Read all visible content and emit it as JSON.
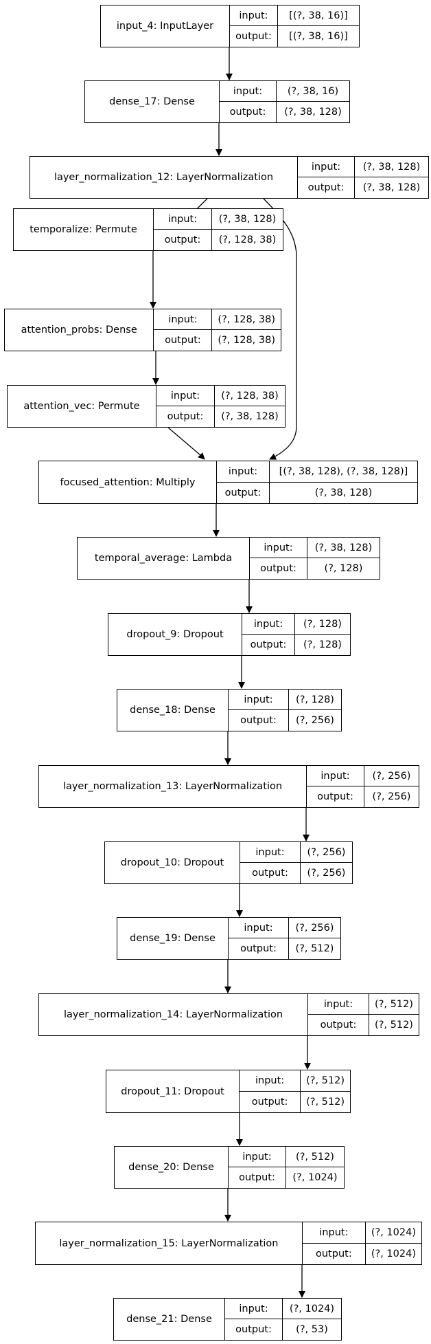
{
  "layers": [
    {
      "id": "input_4",
      "name": "input_4: InputLayer",
      "input_label": "input:",
      "output_label": "output:",
      "input": "[(?, 38, 16)]",
      "output": "[(?, 38, 16)]"
    },
    {
      "id": "dense_17",
      "name": "dense_17: Dense",
      "input_label": "input:",
      "output_label": "output:",
      "input": "(?, 38, 16)",
      "output": "(?, 38, 128)"
    },
    {
      "id": "layer_normalization_12",
      "name": "layer_normalization_12: LayerNormalization",
      "input_label": "input:",
      "output_label": "output:",
      "input": "(?, 38, 128)",
      "output": "(?, 38, 128)"
    },
    {
      "id": "temporalize",
      "name": "temporalize: Permute",
      "input_label": "input:",
      "output_label": "output:",
      "input": "(?, 38, 128)",
      "output": "(?, 128, 38)"
    },
    {
      "id": "attention_probs",
      "name": "attention_probs: Dense",
      "input_label": "input:",
      "output_label": "output:",
      "input": "(?, 128, 38)",
      "output": "(?, 128, 38)"
    },
    {
      "id": "attention_vec",
      "name": "attention_vec: Permute",
      "input_label": "input:",
      "output_label": "output:",
      "input": "(?, 128, 38)",
      "output": "(?, 38, 128)"
    },
    {
      "id": "focused_attention",
      "name": "focused_attention: Multiply",
      "input_label": "input:",
      "output_label": "output:",
      "input": "[(?, 38, 128), (?, 38, 128)]",
      "output": "(?, 38, 128)"
    },
    {
      "id": "temporal_average",
      "name": "temporal_average: Lambda",
      "input_label": "input:",
      "output_label": "output:",
      "input": "(?, 38, 128)",
      "output": "(?, 128)"
    },
    {
      "id": "dropout_9",
      "name": "dropout_9: Dropout",
      "input_label": "input:",
      "output_label": "output:",
      "input": "(?, 128)",
      "output": "(?, 128)"
    },
    {
      "id": "dense_18",
      "name": "dense_18: Dense",
      "input_label": "input:",
      "output_label": "output:",
      "input": "(?, 128)",
      "output": "(?, 256)"
    },
    {
      "id": "layer_normalization_13",
      "name": "layer_normalization_13: LayerNormalization",
      "input_label": "input:",
      "output_label": "output:",
      "input": "(?, 256)",
      "output": "(?, 256)"
    },
    {
      "id": "dropout_10",
      "name": "dropout_10: Dropout",
      "input_label": "input:",
      "output_label": "output:",
      "input": "(?, 256)",
      "output": "(?, 256)"
    },
    {
      "id": "dense_19",
      "name": "dense_19: Dense",
      "input_label": "input:",
      "output_label": "output:",
      "input": "(?, 256)",
      "output": "(?, 512)"
    },
    {
      "id": "layer_normalization_14",
      "name": "layer_normalization_14: LayerNormalization",
      "input_label": "input:",
      "output_label": "output:",
      "input": "(?, 512)",
      "output": "(?, 512)"
    },
    {
      "id": "dropout_11",
      "name": "dropout_11: Dropout",
      "input_label": "input:",
      "output_label": "output:",
      "input": "(?, 512)",
      "output": "(?, 512)"
    },
    {
      "id": "dense_20",
      "name": "dense_20: Dense",
      "input_label": "input:",
      "output_label": "output:",
      "input": "(?, 512)",
      "output": "(?, 1024)"
    },
    {
      "id": "layer_normalization_15",
      "name": "layer_normalization_15: LayerNormalization",
      "input_label": "input:",
      "output_label": "output:",
      "input": "(?, 1024)",
      "output": "(?, 1024)"
    },
    {
      "id": "dense_21",
      "name": "dense_21: Dense",
      "input_label": "input:",
      "output_label": "output:",
      "input": "(?, 1024)",
      "output": "(?, 53)"
    }
  ],
  "edges": [
    [
      "input_4",
      "dense_17"
    ],
    [
      "dense_17",
      "layer_normalization_12"
    ],
    [
      "layer_normalization_12",
      "temporalize"
    ],
    [
      "layer_normalization_12",
      "focused_attention"
    ],
    [
      "temporalize",
      "attention_probs"
    ],
    [
      "attention_probs",
      "attention_vec"
    ],
    [
      "attention_vec",
      "focused_attention"
    ],
    [
      "focused_attention",
      "temporal_average"
    ],
    [
      "temporal_average",
      "dropout_9"
    ],
    [
      "dropout_9",
      "dense_18"
    ],
    [
      "dense_18",
      "layer_normalization_13"
    ],
    [
      "layer_normalization_13",
      "dropout_10"
    ],
    [
      "dropout_10",
      "dense_19"
    ],
    [
      "dense_19",
      "layer_normalization_14"
    ],
    [
      "layer_normalization_14",
      "dropout_11"
    ],
    [
      "dropout_11",
      "dense_20"
    ],
    [
      "dense_20",
      "layer_normalization_15"
    ],
    [
      "layer_normalization_15",
      "dense_21"
    ]
  ]
}
